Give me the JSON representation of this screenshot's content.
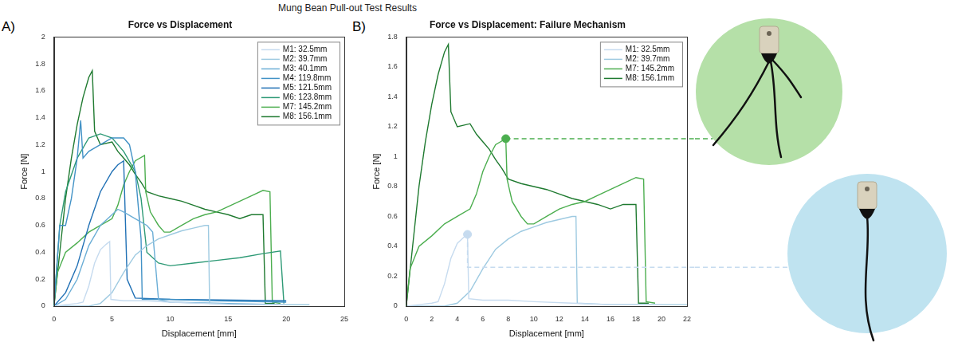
{
  "title": "Mung Bean Pull-out Test Results",
  "chart_data": [
    {
      "type": "line",
      "panel": "A)",
      "title": "Force vs Displacement",
      "x_label": "Displacement [mm]",
      "y_label": "Force [N]",
      "xlim": [
        0,
        25
      ],
      "xticks": [
        0,
        5,
        10,
        15,
        20,
        25
      ],
      "ylim": [
        0,
        2
      ],
      "yticks": [
        0,
        0.2,
        0.4,
        0.6,
        0.8,
        1,
        1.2,
        1.4,
        1.6,
        1.8,
        2
      ],
      "grid": false,
      "legend": "upper right",
      "series": [
        {
          "name": "M1: 32.5mm",
          "color": "#c6dbef",
          "x": [
            0,
            1,
            2,
            2.5,
            3,
            3.5,
            4,
            4.5,
            4.8,
            4.9,
            6,
            8,
            10,
            13,
            16,
            20
          ],
          "values": [
            0,
            0.01,
            0.02,
            0.03,
            0.15,
            0.32,
            0.42,
            0.46,
            0.48,
            0.05,
            0.04,
            0.04,
            0.03,
            0.02,
            0.01,
            0.01
          ]
        },
        {
          "name": "M2: 39.7mm",
          "color": "#9ecae1",
          "x": [
            0,
            3,
            4,
            5,
            6,
            7,
            8,
            9,
            10,
            11,
            12,
            13,
            13.3,
            13.4,
            16,
            22
          ],
          "values": [
            0,
            0,
            0.02,
            0.1,
            0.25,
            0.38,
            0.45,
            0.5,
            0.53,
            0.56,
            0.58,
            0.6,
            0.6,
            0.02,
            0.01,
            0.01
          ]
        },
        {
          "name": "M3: 40.1mm",
          "color": "#6baed6",
          "x": [
            0,
            1,
            2,
            3,
            4,
            5,
            5.5,
            6,
            7,
            8,
            8.5,
            9,
            10,
            15,
            20
          ],
          "values": [
            0,
            0.05,
            0.2,
            0.45,
            0.6,
            0.68,
            0.72,
            0.7,
            0.65,
            0.6,
            0.55,
            0.05,
            0.03,
            0.02,
            0.01
          ]
        },
        {
          "name": "M4: 119.8mm",
          "color": "#4292c6",
          "x": [
            0,
            0.5,
            1,
            1.5,
            2,
            2.3,
            2.5,
            3,
            4,
            5,
            6,
            6.5,
            7,
            7.5,
            7.6,
            10,
            14,
            20
          ],
          "values": [
            0,
            0.6,
            0.6,
            0.8,
            1.1,
            1.38,
            1.1,
            1.15,
            1.2,
            1.25,
            1.25,
            1.2,
            1.0,
            0.5,
            0.05,
            0.05,
            0.04,
            0.03
          ]
        },
        {
          "name": "M5: 121.5mm",
          "color": "#2171b5",
          "x": [
            0,
            1,
            2,
            3,
            4,
            5,
            5.5,
            6,
            6.3,
            7,
            10,
            20
          ],
          "values": [
            0,
            0.1,
            0.3,
            0.6,
            0.85,
            1.0,
            1.05,
            1.08,
            0.2,
            0.06,
            0.05,
            0.04
          ]
        },
        {
          "name": "M6: 123.8mm",
          "color": "#2e9a76",
          "x": [
            0,
            0.5,
            1,
            2,
            3,
            4,
            5,
            6,
            7,
            7.5,
            8,
            9,
            10,
            12,
            14,
            16,
            18,
            19.5,
            19.8
          ],
          "values": [
            0,
            0.6,
            0.85,
            1.1,
            1.25,
            1.28,
            1.25,
            1.15,
            1.0,
            0.8,
            0.4,
            0.32,
            0.3,
            0.32,
            0.34,
            0.36,
            0.39,
            0.41,
            0.02
          ]
        },
        {
          "name": "M7: 145.2mm",
          "color": "#4cae4f",
          "x": [
            0,
            0.3,
            1,
            2,
            3,
            4,
            5,
            5.5,
            6,
            6.5,
            7,
            7.8,
            7.9,
            8.3,
            9,
            9.5,
            10,
            11,
            12,
            13,
            14,
            15,
            16,
            17,
            18,
            18.6,
            18.8,
            19.5
          ],
          "values": [
            0,
            0.25,
            0.4,
            0.47,
            0.55,
            0.6,
            0.65,
            0.75,
            0.9,
            1.0,
            1.08,
            1.12,
            0.85,
            0.7,
            0.6,
            0.55,
            0.55,
            0.6,
            0.65,
            0.68,
            0.7,
            0.74,
            0.78,
            0.82,
            0.86,
            0.85,
            0.03,
            0.02
          ]
        },
        {
          "name": "M8: 156.1mm",
          "color": "#1f7a30",
          "x": [
            0,
            0.5,
            1,
            1.5,
            2,
            2.5,
            3,
            3.3,
            3.5,
            4,
            5,
            5.5,
            6,
            6.5,
            7,
            7.5,
            8,
            9,
            10,
            11,
            12,
            13,
            14,
            15,
            16,
            17,
            18,
            18.2,
            19
          ],
          "values": [
            0,
            0.4,
            0.8,
            1.1,
            1.35,
            1.55,
            1.7,
            1.75,
            1.3,
            1.2,
            1.22,
            1.15,
            1.1,
            1.05,
            0.98,
            0.92,
            0.85,
            0.82,
            0.8,
            0.78,
            0.75,
            0.72,
            0.7,
            0.68,
            0.65,
            0.68,
            0.68,
            0.02,
            0.02
          ]
        }
      ]
    },
    {
      "type": "line",
      "panel": "B)",
      "title": "Force vs Displacement: Failure Mechanism",
      "x_label": "Displacement [mm]",
      "y_label": "Force [N]",
      "xlim": [
        0,
        22
      ],
      "xticks": [
        0,
        2,
        4,
        6,
        8,
        10,
        12,
        14,
        16,
        18,
        20,
        22
      ],
      "ylim": [
        0,
        1.8
      ],
      "yticks": [
        0,
        0.2,
        0.4,
        0.6,
        0.8,
        1,
        1.2,
        1.4,
        1.6,
        1.8
      ],
      "grid": false,
      "legend": "upper right",
      "series": [
        {
          "name": "M1: 32.5mm",
          "color": "#c6dbef",
          "x": [
            0,
            1,
            2,
            2.5,
            3,
            3.5,
            4,
            4.5,
            4.8,
            4.9,
            6,
            8,
            10,
            13,
            16,
            20
          ],
          "values": [
            0,
            0.01,
            0.02,
            0.03,
            0.15,
            0.32,
            0.42,
            0.46,
            0.48,
            0.05,
            0.04,
            0.04,
            0.03,
            0.02,
            0.01,
            0.01
          ]
        },
        {
          "name": "M2: 39.7mm",
          "color": "#9ecae1",
          "x": [
            0,
            3,
            4,
            5,
            6,
            7,
            8,
            9,
            10,
            11,
            12,
            13,
            13.3,
            13.4,
            16,
            22
          ],
          "values": [
            0,
            0,
            0.02,
            0.1,
            0.25,
            0.38,
            0.45,
            0.5,
            0.53,
            0.56,
            0.58,
            0.6,
            0.6,
            0.02,
            0.01,
            0.01
          ]
        },
        {
          "name": "M7: 145.2mm",
          "color": "#4cae4f",
          "x": [
            0,
            0.3,
            1,
            2,
            3,
            4,
            5,
            5.5,
            6,
            6.5,
            7,
            7.8,
            7.9,
            8.3,
            9,
            9.5,
            10,
            11,
            12,
            13,
            14,
            15,
            16,
            17,
            18,
            18.6,
            18.8,
            19.5
          ],
          "values": [
            0,
            0.25,
            0.4,
            0.47,
            0.55,
            0.6,
            0.65,
            0.75,
            0.9,
            1.0,
            1.08,
            1.12,
            0.85,
            0.7,
            0.6,
            0.55,
            0.55,
            0.6,
            0.65,
            0.68,
            0.7,
            0.74,
            0.78,
            0.82,
            0.86,
            0.85,
            0.03,
            0.02
          ]
        },
        {
          "name": "M8: 156.1mm",
          "color": "#1f7a30",
          "x": [
            0,
            0.5,
            1,
            1.5,
            2,
            2.5,
            3,
            3.3,
            3.5,
            4,
            5,
            5.5,
            6,
            6.5,
            7,
            7.5,
            8,
            9,
            10,
            11,
            12,
            13,
            14,
            15,
            16,
            17,
            18,
            18.2,
            19
          ],
          "values": [
            0,
            0.4,
            0.8,
            1.1,
            1.35,
            1.55,
            1.7,
            1.75,
            1.3,
            1.2,
            1.22,
            1.15,
            1.1,
            1.05,
            0.98,
            0.92,
            0.85,
            0.82,
            0.8,
            0.78,
            0.75,
            0.72,
            0.7,
            0.68,
            0.65,
            0.68,
            0.68,
            0.02,
            0.02
          ]
        }
      ],
      "markers": [
        {
          "series": "M7: 145.2mm",
          "x": 7.8,
          "y": 1.12,
          "guide_y": 1.12
        },
        {
          "series": "M1: 32.5mm",
          "x": 4.8,
          "y": 0.48,
          "guide_y": 0.26
        }
      ]
    }
  ]
}
